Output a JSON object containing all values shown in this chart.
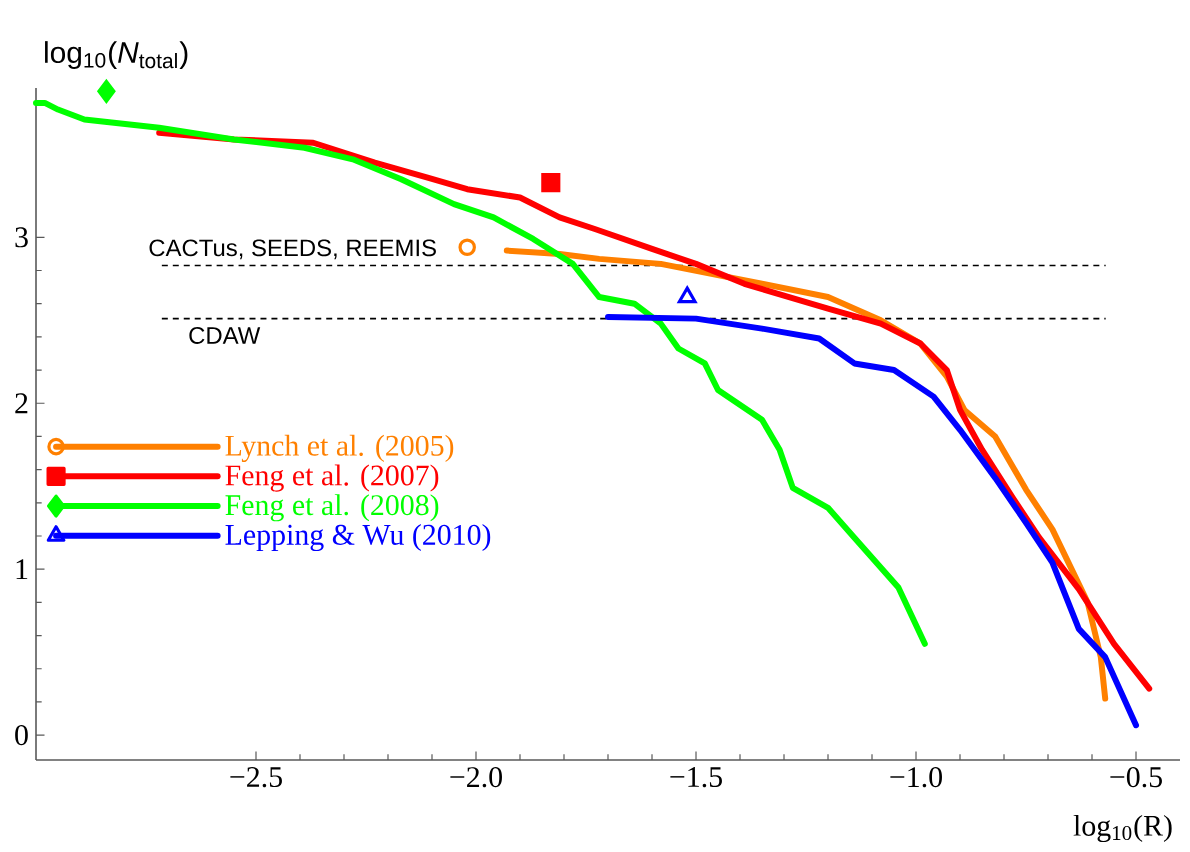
{
  "chart_data": {
    "type": "line",
    "xlabel": "log$_{10}$(R)",
    "ylabel": "log$_{10}$(*N*$_{total}$)",
    "xlim": [
      -3.0,
      -0.4
    ],
    "ylim": [
      -0.15,
      3.9
    ],
    "xticks": [
      {
        "value": -2.5,
        "label": "−2.5"
      },
      {
        "value": -2.0,
        "label": "−2.0"
      },
      {
        "value": -1.5,
        "label": "−1.5"
      },
      {
        "value": -1.0,
        "label": "−1.0"
      },
      {
        "value": -0.5,
        "label": "−0.5"
      }
    ],
    "yticks": [
      0,
      1,
      2,
      3
    ],
    "legend": "left",
    "line_style": "solid",
    "ref_lines": [
      {
        "axis": "y",
        "value": 2.83,
        "label": "CACTus, SEEDS, REEMIS",
        "color": "#000000",
        "line_style": "dashed"
      },
      {
        "axis": "y",
        "value": 2.51,
        "label": "CDAW",
        "color": "#000000",
        "line_style": "dashed"
      }
    ],
    "series": [
      {
        "name": "Lynch et al. (2005)",
        "color": "#ff8000",
        "x": [
          -1.93,
          -1.81,
          -1.72,
          -1.58,
          -1.35,
          -1.2,
          -1.08,
          -0.99,
          -0.93,
          -0.89,
          -0.82,
          -0.75,
          -0.69,
          -0.61,
          -0.58,
          -0.57
        ],
        "values": [
          2.92,
          2.9,
          2.87,
          2.84,
          2.72,
          2.64,
          2.5,
          2.36,
          2.16,
          1.96,
          1.8,
          1.48,
          1.24,
          0.8,
          0.47,
          0.22
        ]
      },
      {
        "name": "Feng et al. (2007)",
        "color": "#ff0000",
        "x": [
          -2.72,
          -2.55,
          -2.37,
          -2.23,
          -2.11,
          -2.02,
          -1.9,
          -1.81,
          -1.73,
          -1.6,
          -1.5,
          -1.39,
          -1.2,
          -1.08,
          -0.99,
          -0.93,
          -0.9,
          -0.85,
          -0.78,
          -0.72,
          -0.63,
          -0.55,
          -0.47
        ],
        "values": [
          3.63,
          3.59,
          3.57,
          3.45,
          3.36,
          3.29,
          3.24,
          3.12,
          3.05,
          2.93,
          2.84,
          2.72,
          2.57,
          2.48,
          2.36,
          2.2,
          1.96,
          1.72,
          1.43,
          1.19,
          0.88,
          0.55,
          0.28
        ]
      },
      {
        "name": "Feng et al. (2008)",
        "color": "#00ff00",
        "x": [
          -3.0,
          -2.98,
          -2.95,
          -2.89,
          -2.72,
          -2.55,
          -2.39,
          -2.28,
          -2.17,
          -2.05,
          -1.96,
          -1.87,
          -1.78,
          -1.72,
          -1.64,
          -1.58,
          -1.54,
          -1.48,
          -1.45,
          -1.35,
          -1.31,
          -1.28,
          -1.2,
          -1.14,
          -1.04,
          -0.98
        ],
        "values": [
          3.81,
          3.81,
          3.77,
          3.71,
          3.66,
          3.59,
          3.54,
          3.47,
          3.35,
          3.2,
          3.12,
          2.99,
          2.84,
          2.64,
          2.6,
          2.48,
          2.33,
          2.24,
          2.08,
          1.9,
          1.72,
          1.49,
          1.37,
          1.19,
          0.89,
          0.55
        ]
      },
      {
        "name": "Lepping & Wu (2010)",
        "color": "#0000ff",
        "x": [
          -1.7,
          -1.5,
          -1.35,
          -1.22,
          -1.14,
          -1.05,
          -0.96,
          -0.9,
          -0.82,
          -0.75,
          -0.69,
          -0.63,
          -0.57,
          -0.5
        ],
        "values": [
          2.52,
          2.51,
          2.45,
          2.39,
          2.24,
          2.2,
          2.04,
          1.84,
          1.55,
          1.28,
          1.04,
          0.64,
          0.47,
          0.06
        ]
      },
      {
        "type": "scatter",
        "marker": "circle",
        "color": "#ff8000",
        "x": [
          -2.02
        ],
        "values": [
          2.94
        ]
      },
      {
        "type": "scatter",
        "marker": "square",
        "color": "#ff0000",
        "x": [
          -1.83
        ],
        "values": [
          3.33
        ]
      },
      {
        "type": "scatter",
        "marker": "diamond",
        "color": "#00ff00",
        "x": [
          -2.84
        ],
        "values": [
          3.88
        ]
      },
      {
        "type": "scatter",
        "marker": "triangle",
        "color": "#0000ff",
        "x": [
          -1.52
        ],
        "values": [
          2.64
        ]
      }
    ]
  }
}
